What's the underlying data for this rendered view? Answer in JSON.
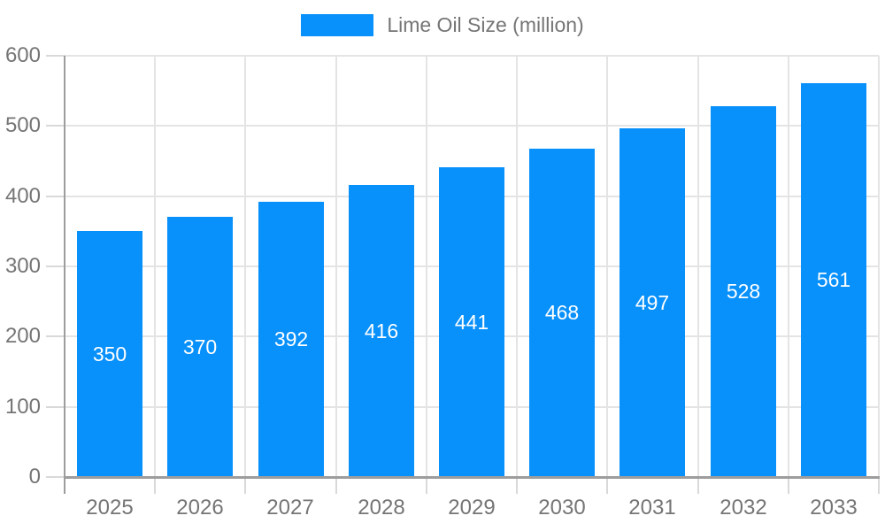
{
  "legend": {
    "label": "Lime Oil Size (million)",
    "swatch_color": "#0890fb"
  },
  "chart_data": {
    "type": "bar",
    "categories": [
      "2025",
      "2026",
      "2027",
      "2028",
      "2029",
      "2030",
      "2031",
      "2032",
      "2033"
    ],
    "series": [
      {
        "name": "Lime Oil Size (million)",
        "values": [
          350,
          370,
          392,
          416,
          441,
          468,
          497,
          528,
          561
        ]
      }
    ],
    "title": "",
    "xlabel": "",
    "ylabel": "",
    "ylim": [
      0,
      600
    ],
    "yticks": [
      0,
      100,
      200,
      300,
      400,
      500,
      600
    ],
    "grid": true,
    "legend_position": "top-center",
    "value_labels_position": "inside-center",
    "colors": {
      "bar": "#0890fb",
      "value_label_text": "#ffffff",
      "axis_line": "#9d9d9d",
      "gridline": "#e4e4e4",
      "tick": "#d9d9d9",
      "axis_text": "#757575",
      "legend_text": "#757575",
      "background": "#ffffff"
    }
  }
}
